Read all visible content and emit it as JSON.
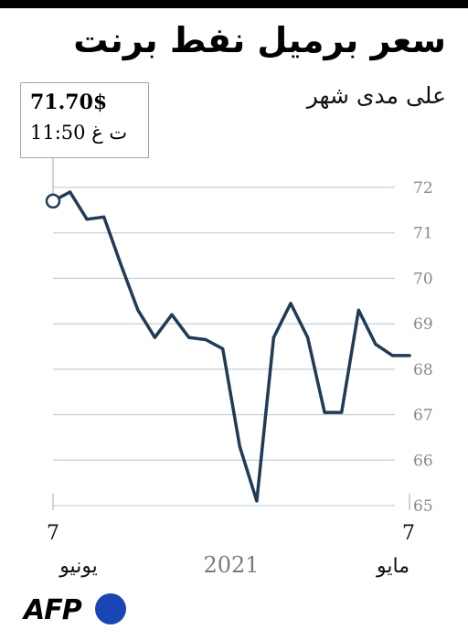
{
  "title": "سعر برميل نفط برنت",
  "subtitle": "على مدى شهر",
  "callout": {
    "price": "71.70$",
    "time": "11:50 ت غ"
  },
  "logo": {
    "text": "AFP"
  },
  "colors": {
    "line": "#1f3b55",
    "grid": "#b8c7cc",
    "brand_dot": "#1946b4"
  },
  "chart_data": {
    "type": "line",
    "title": "سعر برميل نفط برنت",
    "subtitle": "على مدى شهر",
    "x_start_label": {
      "day": "7",
      "month": "مايو"
    },
    "x_end_label": {
      "day": "7",
      "month": "يونيو"
    },
    "year": "2021",
    "x_direction": "right-to-left",
    "ylim": [
      65,
      72
    ],
    "yticks": [
      "72",
      "71",
      "70",
      "69",
      "68",
      "67",
      "66",
      "65"
    ],
    "grid": true,
    "y_axis_side": "right",
    "series": [
      {
        "values": [
          68.3,
          68.3,
          68.55,
          69.3,
          67.05,
          67.05,
          68.7,
          69.45,
          68.7,
          65.1,
          66.3,
          68.45,
          68.65,
          68.7,
          69.2,
          68.7,
          69.3,
          70.3,
          71.35,
          71.3,
          71.9,
          71.7
        ]
      }
    ],
    "last_value": 71.7
  }
}
